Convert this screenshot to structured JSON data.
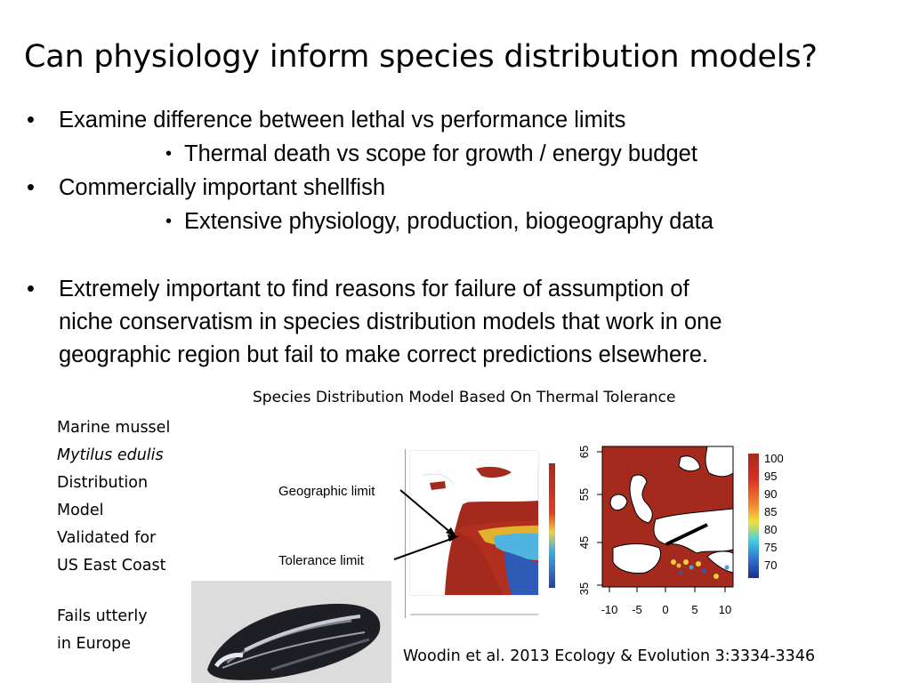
{
  "slide": {
    "title": "Can physiology inform species distribution models?",
    "bullets": [
      {
        "text": "Examine difference between lethal vs performance limits",
        "sub": "Thermal death vs scope for growth / energy budget"
      },
      {
        "text": "Commercially important shellfish",
        "sub": "Extensive physiology, production, biogeography data"
      },
      {
        "text": "Extremely important to find reasons for failure of assumption of",
        "cont1": "niche conservatism in species distribution models that work in one",
        "cont2": "geographic region but fail to make correct predictions elsewhere."
      }
    ],
    "bullet_symbol": "•",
    "figure_caption": "Species Distribution Model Based On Thermal Tolerance",
    "side_text": {
      "line1": "Marine mussel",
      "line2": "Mytilus edulis",
      "line3": "Distribution",
      "line4": "Model",
      "line5": "Validated for",
      "line6": "US East Coast",
      "line7": "Fails utterly",
      "line8": "in Europe"
    },
    "citation": "Woodin et al. 2013 Ecology & Evolution 3:3334-3346"
  },
  "us_map": {
    "geographic_limit_label": "Geographic limit",
    "tolerance_limit_label": "Tolerance limit"
  },
  "europe_map": {
    "y_ticks": [
      "65",
      "55",
      "45",
      "35"
    ],
    "x_ticks": [
      "-10",
      "-5",
      "0",
      "5",
      "10"
    ],
    "legend_ticks": [
      "100",
      "95",
      "90",
      "85",
      "80",
      "75",
      "70"
    ]
  },
  "colors": {
    "ocean_red": "#a52a1e",
    "land": "#ffffff",
    "warm_blue": "#2e5bb5"
  }
}
